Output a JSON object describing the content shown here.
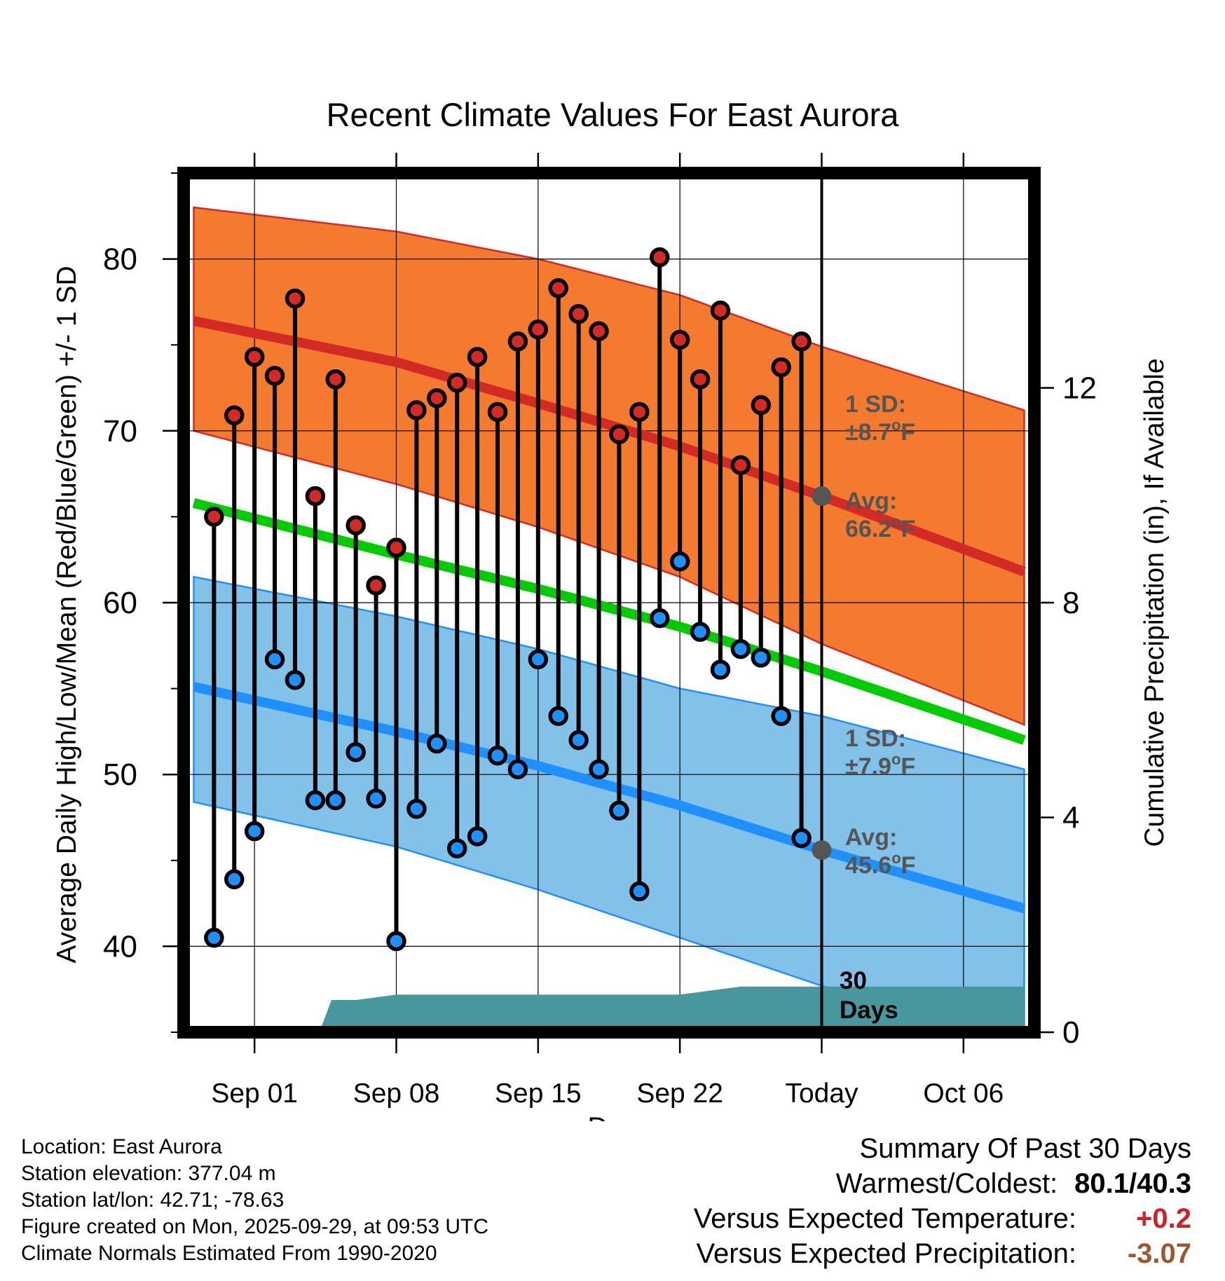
{
  "chart_data": {
    "type": "line",
    "title": "Recent Climate Values For East Aurora",
    "xlabel": "Day",
    "ylabel": "Average Daily High/Low/Mean (Red/Blue/Green) +/- 1 SD",
    "y2label": "Cumulative Precipitation (in), If Available",
    "ylim": [
      35,
      85
    ],
    "y2lim": [
      0,
      16
    ],
    "y_ticks": [
      40,
      50,
      60,
      70,
      80
    ],
    "y2_ticks": [
      0,
      4,
      8,
      12
    ],
    "x_range_days": [
      -3.5,
      38.5
    ],
    "x_ticks": [
      {
        "day": 0,
        "label": "Sep 01"
      },
      {
        "day": 7,
        "label": "Sep 08"
      },
      {
        "day": 14,
        "label": "Sep 15"
      },
      {
        "day": 21,
        "label": "Sep 22"
      },
      {
        "day": 28,
        "label": "Today"
      },
      {
        "day": 35,
        "label": "Oct 06"
      }
    ],
    "today_day": 28,
    "window_label": "30 Days",
    "normals": {
      "x": [
        -3,
        7,
        14,
        21,
        28,
        38
      ],
      "high_mean": [
        76.4,
        74.0,
        71.6,
        69.1,
        66.2,
        61.8
      ],
      "high_upper": [
        83.0,
        81.6,
        80.0,
        77.9,
        74.9,
        71.2
      ],
      "high_lower": [
        70.0,
        66.9,
        64.4,
        61.5,
        57.6,
        52.9
      ],
      "mean": [
        65.8,
        62.8,
        60.8,
        58.6,
        56.0,
        52.0
      ],
      "low_mean": [
        55.1,
        52.5,
        50.5,
        48.2,
        45.6,
        42.2
      ],
      "low_upper": [
        61.5,
        59.2,
        57.3,
        55.0,
        53.4,
        50.3
      ],
      "low_lower": [
        48.4,
        45.8,
        43.3,
        40.5,
        37.7,
        34.4
      ]
    },
    "observed": {
      "days": [
        -2,
        -1,
        0,
        1,
        2,
        3,
        4,
        5,
        6,
        7,
        8,
        9,
        10,
        11,
        12,
        13,
        14,
        15,
        16,
        17,
        18,
        19,
        20,
        21,
        22,
        23,
        24,
        25,
        26,
        27
      ],
      "highs": [
        65.0,
        70.9,
        74.3,
        73.2,
        77.7,
        66.2,
        73.0,
        64.5,
        61.0,
        63.2,
        71.2,
        71.9,
        72.8,
        74.3,
        71.1,
        75.2,
        75.9,
        78.3,
        76.8,
        75.8,
        69.8,
        71.1,
        80.1,
        75.3,
        73.0,
        77.0,
        68.0,
        71.5,
        73.7,
        75.2
      ],
      "lows": [
        40.5,
        43.9,
        46.7,
        56.7,
        55.5,
        48.5,
        48.5,
        51.3,
        48.6,
        40.3,
        48.0,
        51.8,
        45.7,
        46.4,
        51.1,
        50.3,
        56.7,
        53.4,
        52.0,
        50.3,
        47.9,
        43.2,
        59.1,
        62.4,
        58.3,
        56.1,
        57.3,
        56.8,
        53.4,
        46.3
      ]
    },
    "precipitation": {
      "x": [
        3.2,
        3.8,
        5.0,
        6.0,
        7.0,
        12.0,
        18.0,
        20.0,
        21.0,
        22.0,
        23.0,
        24.0,
        25.0,
        28.0,
        38.0
      ],
      "cumulative": [
        0.0,
        0.6,
        0.6,
        0.65,
        0.7,
        0.7,
        0.7,
        0.7,
        0.7,
        0.75,
        0.8,
        0.85,
        0.85,
        0.85,
        0.85
      ]
    },
    "annotations": {
      "high_sd_label": "1 SD:",
      "high_sd_value": "±8.7",
      "high_avg_label": "Avg:",
      "high_avg_value": "66.2",
      "low_sd_label": "1 SD:",
      "low_sd_value": "±7.9",
      "low_avg_label": "Avg:",
      "low_avg_value": "45.6",
      "unit": "F",
      "degree": "o"
    },
    "colors": {
      "high_band": "#f47a2e",
      "high_edge": "#d42a26",
      "high_line": "#d42a26",
      "low_band": "#82c1e8",
      "low_edge": "#1e90ff",
      "low_line": "#1e90ff",
      "mean_line": "#00cc00",
      "precip": "#46989e",
      "high_dot": "#d42a26",
      "low_dot": "#1e90ff",
      "annotation": "#555555",
      "avg_dot": "#555555"
    }
  },
  "info": {
    "location": "Location: East Aurora",
    "elevation": "Station elevation: 377.04 m",
    "latlon": "Station lat/lon: 42.71; -78.63",
    "created": "Figure created on Mon, 2025-09-29, at 09:53 UTC",
    "normals": "Climate Normals Estimated From 1990-2020"
  },
  "summary": {
    "title": "Summary Of Past 30 Days",
    "warmest_coldest_label": "Warmest/Coldest:",
    "warmest_coldest_value": "80.1/40.3",
    "temp_label": "Versus Expected Temperature:",
    "temp_value": "+0.2",
    "temp_color": "#cc2222",
    "precip_label": "Versus Expected Precipitation:",
    "precip_value": "-3.07",
    "precip_color": "#9b5a2e"
  }
}
